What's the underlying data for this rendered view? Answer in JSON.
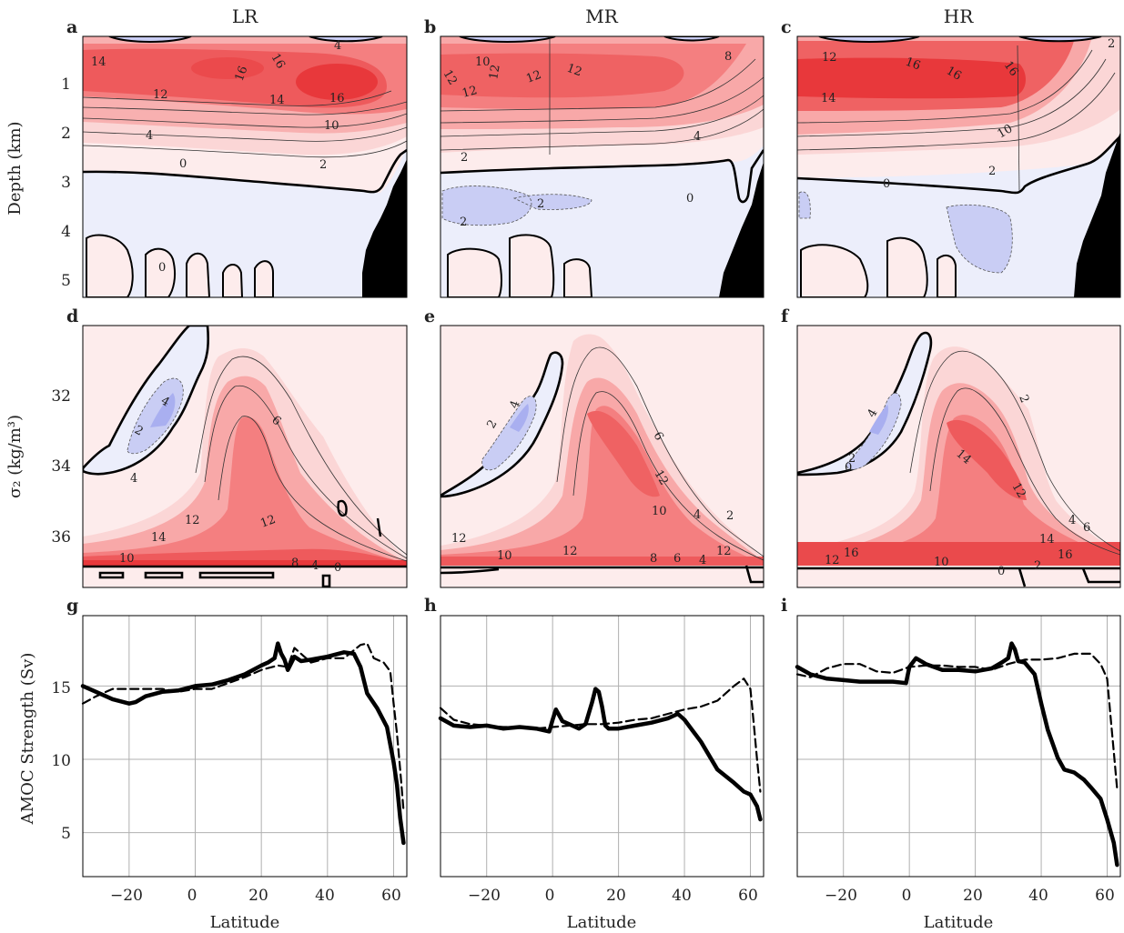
{
  "colors": {
    "red_strong": "#e8383b",
    "red_mid": "#f47f80",
    "red_light": "#fbd6d6",
    "red_pale": "#fdecec",
    "blue_pale": "#eceefb",
    "blue_light": "#c9cdf4",
    "blue_strong": "#a9aff0",
    "bathymetry": "#000000",
    "grid": "#b0b0b0",
    "line": "#000000"
  },
  "column_titles": [
    "LR",
    "MR",
    "HR"
  ],
  "panel_letters": [
    "a",
    "b",
    "c",
    "d",
    "e",
    "f",
    "g",
    "h",
    "i"
  ],
  "row_labels": {
    "depth": "Depth (km)",
    "sigma": "σ₂ (kg/m³)",
    "amoc": "AMOC Strength (Sv)"
  },
  "xlabel": "Latitude",
  "depth_ticks": [
    "1",
    "2",
    "3",
    "4",
    "5"
  ],
  "sigma_ticks": [
    "32",
    "34",
    "36"
  ],
  "amoc_ticks": [
    "5",
    "10",
    "15"
  ],
  "lat_ticks": [
    "−20",
    "0",
    "20",
    "40",
    "60"
  ],
  "contour_labels": {
    "a": [
      "14",
      "16",
      "16",
      "12",
      "14",
      "16",
      "10",
      "4",
      "2",
      "0",
      "4",
      "0"
    ],
    "b": [
      "10",
      "12",
      "12",
      "12",
      "12",
      "12",
      "8",
      "4",
      "2",
      "0",
      "2",
      "2"
    ],
    "c": [
      "12",
      "16",
      "16",
      "16",
      "14",
      "10",
      "2",
      "0",
      "2"
    ],
    "d": [
      "4",
      "2",
      "4",
      "6",
      "12",
      "14",
      "12",
      "10",
      "8",
      "4",
      "0"
    ],
    "e": [
      "2",
      "4",
      "6",
      "12",
      "10",
      "4",
      "2",
      "12",
      "10",
      "12",
      "8",
      "6",
      "4",
      "12"
    ],
    "f": [
      "2",
      "4",
      "0",
      "2",
      "14",
      "12",
      "4",
      "6",
      "14",
      "16",
      "12",
      "16",
      "10",
      "0",
      "2"
    ]
  },
  "chart_data": [
    {
      "panel": "a",
      "type": "heatmap",
      "title": "LR",
      "xlabel": "",
      "ylabel": "Depth (km)",
      "xlim": [
        -34,
        64
      ],
      "ylim": [
        5.35,
        0
      ],
      "description_values": {
        "max_streamfunction_Sv": 16,
        "zero_line_depth_km": 2.9
      },
      "contour_levels_Sv": [
        -4,
        -2,
        0,
        2,
        4,
        6,
        8,
        10,
        12,
        14,
        16
      ]
    },
    {
      "panel": "b",
      "type": "heatmap",
      "title": "MR",
      "xlabel": "",
      "ylabel": "",
      "xlim": [
        -34,
        64
      ],
      "ylim": [
        5.35,
        0
      ],
      "description_values": {
        "max_streamfunction_Sv": 12,
        "zero_line_depth_km": 2.6
      },
      "contour_levels_Sv": [
        -4,
        -2,
        0,
        2,
        4,
        6,
        8,
        10,
        12
      ]
    },
    {
      "panel": "c",
      "type": "heatmap",
      "title": "HR",
      "xlabel": "",
      "ylabel": "",
      "xlim": [
        -34,
        64
      ],
      "ylim": [
        5.35,
        0
      ],
      "description_values": {
        "max_streamfunction_Sv": 16,
        "zero_line_depth_km": 2.8
      },
      "contour_levels_Sv": [
        -4,
        -2,
        0,
        2,
        4,
        6,
        8,
        10,
        12,
        14,
        16
      ]
    },
    {
      "panel": "d",
      "type": "heatmap",
      "xlabel": "",
      "ylabel": "σ₂ (kg/m³)",
      "xlim": [
        -34,
        64
      ],
      "ylim": [
        37.0,
        30.3
      ],
      "contour_levels_Sv": [
        -4,
        -2,
        0,
        2,
        4,
        6,
        8,
        10,
        12,
        14
      ]
    },
    {
      "panel": "e",
      "type": "heatmap",
      "xlabel": "",
      "ylabel": "",
      "xlim": [
        -34,
        64
      ],
      "ylim": [
        37.0,
        30.3
      ],
      "contour_levels_Sv": [
        -4,
        -2,
        0,
        2,
        4,
        6,
        8,
        10,
        12
      ]
    },
    {
      "panel": "f",
      "type": "heatmap",
      "xlabel": "",
      "ylabel": "",
      "xlim": [
        -34,
        64
      ],
      "ylim": [
        37.0,
        30.3
      ],
      "contour_levels_Sv": [
        -4,
        -2,
        0,
        2,
        4,
        6,
        8,
        10,
        12,
        14,
        16
      ]
    },
    {
      "panel": "g",
      "type": "line",
      "xlabel": "Latitude",
      "ylabel": "AMOC Strength (Sv)",
      "xlim": [
        -34,
        64
      ],
      "ylim": [
        2,
        19.8
      ],
      "grid": true,
      "series": [
        {
          "style": "solid",
          "x": [
            -34,
            -30,
            -25,
            -20,
            -18,
            -15,
            -10,
            -5,
            0,
            5,
            10,
            15,
            20,
            22,
            24,
            25,
            26,
            27,
            28,
            30,
            32,
            35,
            40,
            45,
            48,
            50,
            52,
            55,
            58,
            60,
            61,
            62,
            63
          ],
          "y": [
            15.0,
            14.6,
            14.1,
            13.8,
            13.9,
            14.3,
            14.6,
            14.7,
            15.0,
            15.1,
            15.4,
            15.8,
            16.4,
            16.6,
            16.9,
            17.9,
            17.2,
            16.8,
            16.1,
            17.0,
            16.7,
            16.8,
            17.0,
            17.3,
            17.2,
            16.3,
            14.5,
            13.5,
            12.2,
            9.8,
            8.3,
            6.0,
            4.3
          ]
        },
        {
          "style": "dashed",
          "x": [
            -34,
            -30,
            -25,
            -20,
            -15,
            -10,
            -5,
            0,
            5,
            10,
            15,
            20,
            25,
            28,
            30,
            35,
            40,
            45,
            50,
            52,
            54,
            57,
            59,
            60,
            61,
            62,
            63
          ],
          "y": [
            13.8,
            14.3,
            14.8,
            14.8,
            14.8,
            14.8,
            14.6,
            14.8,
            14.8,
            15.2,
            15.6,
            16.1,
            16.4,
            16.3,
            17.6,
            16.6,
            16.9,
            16.9,
            17.8,
            17.9,
            16.9,
            16.6,
            16.0,
            13.8,
            11.8,
            9.3,
            6.5
          ]
        }
      ]
    },
    {
      "panel": "h",
      "type": "line",
      "xlabel": "Latitude",
      "ylabel": "",
      "xlim": [
        -34,
        64
      ],
      "ylim": [
        2,
        19.8
      ],
      "grid": true,
      "series": [
        {
          "style": "solid",
          "x": [
            -34,
            -30,
            -25,
            -20,
            -15,
            -10,
            -5,
            -1,
            0,
            1,
            3,
            5,
            8,
            10,
            12,
            13,
            14,
            15,
            16,
            17,
            20,
            25,
            30,
            35,
            38,
            40,
            45,
            50,
            55,
            58,
            60,
            62,
            63
          ],
          "y": [
            12.8,
            12.3,
            12.2,
            12.3,
            12.1,
            12.2,
            12.1,
            11.9,
            12.7,
            13.4,
            12.6,
            12.4,
            12.1,
            12.4,
            13.9,
            14.8,
            14.6,
            13.6,
            12.3,
            12.1,
            12.1,
            12.3,
            12.5,
            12.8,
            13.1,
            12.7,
            11.2,
            9.3,
            8.4,
            7.8,
            7.6,
            6.8,
            5.9
          ]
        },
        {
          "style": "dashed",
          "x": [
            -34,
            -30,
            -25,
            -20,
            -15,
            -10,
            -5,
            0,
            5,
            10,
            15,
            20,
            25,
            30,
            35,
            40,
            45,
            50,
            55,
            58,
            60,
            61,
            62,
            63
          ],
          "y": [
            13.5,
            12.7,
            12.4,
            12.3,
            12.2,
            12.2,
            12.1,
            12.2,
            12.3,
            12.4,
            12.4,
            12.5,
            12.7,
            12.8,
            13.1,
            13.4,
            13.6,
            14.0,
            15.0,
            15.5,
            14.8,
            12.5,
            10.0,
            7.8
          ]
        }
      ]
    },
    {
      "panel": "i",
      "type": "line",
      "xlabel": "Latitude",
      "ylabel": "",
      "xlim": [
        -34,
        64
      ],
      "ylim": [
        2,
        19.8
      ],
      "grid": true,
      "series": [
        {
          "style": "solid",
          "x": [
            -34,
            -30,
            -25,
            -20,
            -15,
            -10,
            -5,
            -1,
            0,
            2,
            5,
            10,
            15,
            20,
            25,
            28,
            30,
            31,
            32,
            33,
            35,
            38,
            40,
            42,
            45,
            47,
            50,
            53,
            55,
            58,
            60,
            62,
            63
          ],
          "y": [
            16.3,
            15.8,
            15.5,
            15.4,
            15.3,
            15.3,
            15.3,
            15.2,
            16.3,
            16.9,
            16.5,
            16.1,
            16.1,
            16.0,
            16.2,
            16.6,
            16.9,
            17.9,
            17.5,
            16.7,
            16.6,
            15.8,
            13.8,
            12.0,
            10.1,
            9.3,
            9.1,
            8.6,
            8.1,
            7.3,
            5.9,
            4.3,
            2.8
          ]
        },
        {
          "style": "dashed",
          "x": [
            -34,
            -30,
            -25,
            -20,
            -15,
            -10,
            -5,
            0,
            5,
            10,
            15,
            20,
            25,
            30,
            35,
            40,
            45,
            50,
            55,
            58,
            60,
            61,
            62,
            63
          ],
          "y": [
            15.8,
            15.6,
            16.2,
            16.5,
            16.5,
            16.0,
            15.9,
            16.3,
            16.4,
            16.4,
            16.3,
            16.3,
            16.1,
            16.5,
            16.8,
            16.8,
            16.9,
            17.2,
            17.2,
            16.5,
            15.5,
            13.0,
            10.5,
            8.0
          ]
        }
      ]
    }
  ]
}
